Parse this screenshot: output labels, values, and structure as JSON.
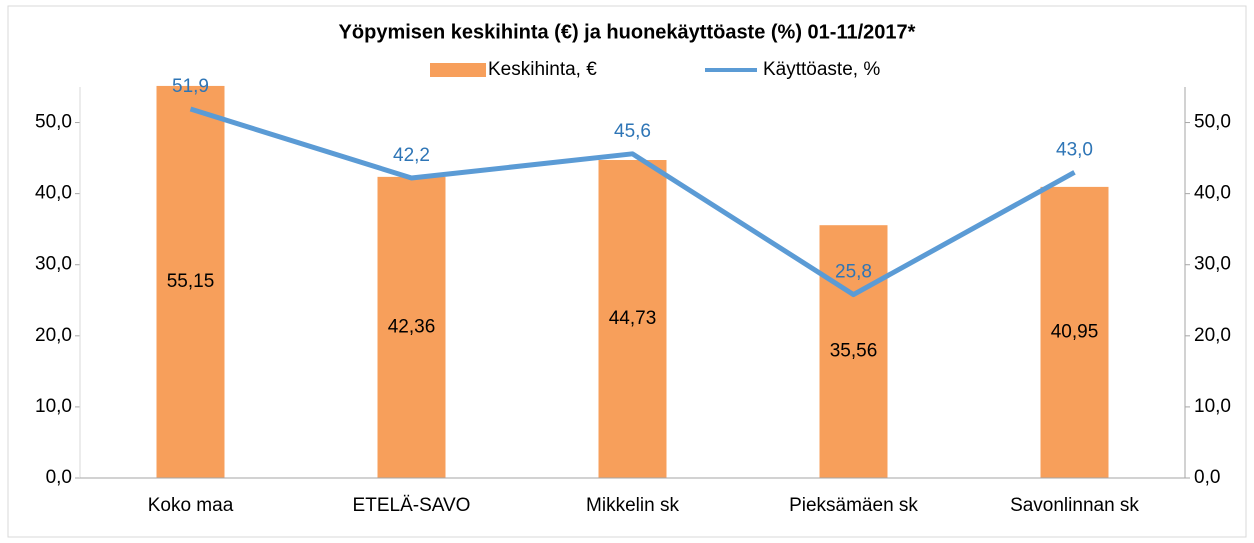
{
  "chart_data": {
    "type": "bar-line",
    "title": "Yöpymisen keskihinta (€) ja huonekäyttöaste (%) 01-11/2017*",
    "categories": [
      "Koko maa",
      "ETELÄ-SAVO",
      "Mikkelin sk",
      "Pieksämäen sk",
      "Savonlinnan sk"
    ],
    "series": [
      {
        "name": "Keskihinta, €",
        "color": "#f79f5b",
        "type": "bar",
        "values": [
          55.15,
          42.36,
          44.73,
          35.56,
          40.95
        ],
        "value_labels": [
          "55,15",
          "42,36",
          "44,73",
          "35,56",
          "40,95"
        ]
      },
      {
        "name": "Käyttöaste, %",
        "color": "#5b9bd5",
        "type": "line",
        "axis": "y2",
        "values": [
          51.9,
          42.2,
          45.6,
          25.8,
          43.0
        ],
        "value_labels": [
          "51,9",
          "42,2",
          "45,6",
          "25,8",
          "43,0"
        ]
      }
    ],
    "ylim": [
      0,
      55
    ],
    "yticks": [
      {
        "value": 0,
        "label": "0,0"
      },
      {
        "value": 10,
        "label": "10,0"
      },
      {
        "value": 20,
        "label": "20,0"
      },
      {
        "value": 30,
        "label": "30,0"
      },
      {
        "value": 40,
        "label": "40,0"
      },
      {
        "value": 50,
        "label": "50,0"
      }
    ],
    "y2lim": [
      0,
      55
    ],
    "y2ticks": [
      {
        "value": 0,
        "label": "0,0"
      },
      {
        "value": 10,
        "label": "10,0"
      },
      {
        "value": 20,
        "label": "20,0"
      },
      {
        "value": 30,
        "label": "30,0"
      },
      {
        "value": 40,
        "label": "40,0"
      },
      {
        "value": 50,
        "label": "50,0"
      }
    ],
    "grid": false,
    "legend": "top"
  }
}
